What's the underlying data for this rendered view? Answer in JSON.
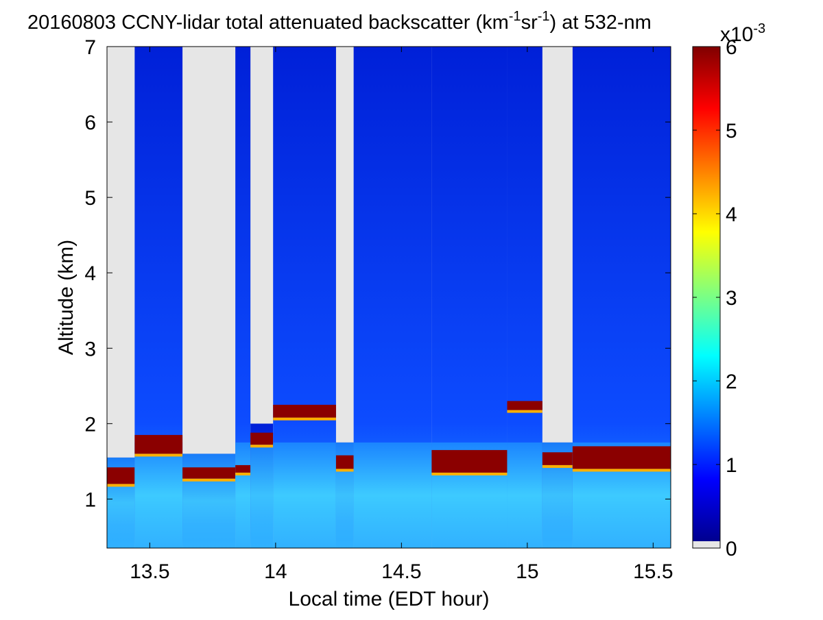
{
  "chart_data": {
    "type": "heatmap",
    "title": "20160803 CCNY-lidar total attenuated backscatter (km",
    "title_sup1": "-1",
    "title_mid": "sr",
    "title_sup2": "-1",
    "title_tail": ") at 532-nm",
    "xlabel": "Local time (EDT hour)",
    "ylabel": "Altitude (km)",
    "xlim": [
      13.33,
      15.57
    ],
    "ylim": [
      0.35,
      7.0
    ],
    "x_ticks": [
      13.5,
      14,
      14.5,
      15,
      15.5
    ],
    "x_tick_labels": [
      "13.5",
      "14",
      "14.5",
      "15",
      "15.5"
    ],
    "y_ticks": [
      1,
      2,
      3,
      4,
      5,
      6,
      7
    ],
    "y_tick_labels": [
      "1",
      "2",
      "3",
      "4",
      "5",
      "6",
      "7"
    ],
    "colorbar": {
      "colormap": "jet",
      "range": [
        0,
        6
      ],
      "ticks": [
        0,
        1,
        2,
        3,
        4,
        5,
        6
      ],
      "tick_labels": [
        "0",
        "1",
        "2",
        "3",
        "4",
        "5",
        "6"
      ],
      "multiplier_base": "x10",
      "multiplier_exp": "-3",
      "zero_color": "#e6e6e6"
    },
    "columns": [
      {
        "t0": 13.33,
        "t1": 13.44,
        "ceiling": 1.5,
        "cloud_base": 1.2,
        "cloud_top": 1.42,
        "signal_top": 1.55
      },
      {
        "t0": 13.44,
        "t1": 13.63,
        "ceiling": 7.0,
        "cloud_base": 1.6,
        "cloud_top": 1.85,
        "signal_top": 7.0
      },
      {
        "t0": 13.63,
        "t1": 13.84,
        "ceiling": 1.55,
        "cloud_base": 1.27,
        "cloud_top": 1.42,
        "signal_top": 1.6
      },
      {
        "t0": 13.84,
        "t1": 13.9,
        "ceiling": 7.0,
        "cloud_base": 1.35,
        "cloud_top": 1.45,
        "signal_top": 7.0
      },
      {
        "t0": 13.9,
        "t1": 13.99,
        "ceiling": 2.0,
        "cloud_base": 1.72,
        "cloud_top": 1.88,
        "signal_top": 2.0
      },
      {
        "t0": 13.99,
        "t1": 14.24,
        "ceiling": 7.0,
        "cloud_base": 2.08,
        "cloud_top": 2.25,
        "signal_top": 7.0
      },
      {
        "t0": 14.24,
        "t1": 14.31,
        "ceiling": 1.7,
        "cloud_base": 1.4,
        "cloud_top": 1.58,
        "signal_top": 1.75
      },
      {
        "t0": 14.31,
        "t1": 14.62,
        "ceiling": 7.0,
        "cloud_base": 0,
        "cloud_top": 0,
        "signal_top": 7.0
      },
      {
        "t0": 14.62,
        "t1": 14.92,
        "ceiling": 7.0,
        "cloud_base": 1.35,
        "cloud_top": 1.65,
        "signal_top": 7.0
      },
      {
        "t0": 14.92,
        "t1": 15.06,
        "ceiling": 7.0,
        "cloud_base": 2.18,
        "cloud_top": 2.3,
        "signal_top": 7.0
      },
      {
        "t0": 15.06,
        "t1": 15.18,
        "ceiling": 1.7,
        "cloud_base": 1.45,
        "cloud_top": 1.62,
        "signal_top": 1.75
      },
      {
        "t0": 15.18,
        "t1": 15.57,
        "ceiling": 7.0,
        "cloud_base": 1.4,
        "cloud_top": 1.7,
        "signal_top": 7.0
      }
    ]
  }
}
